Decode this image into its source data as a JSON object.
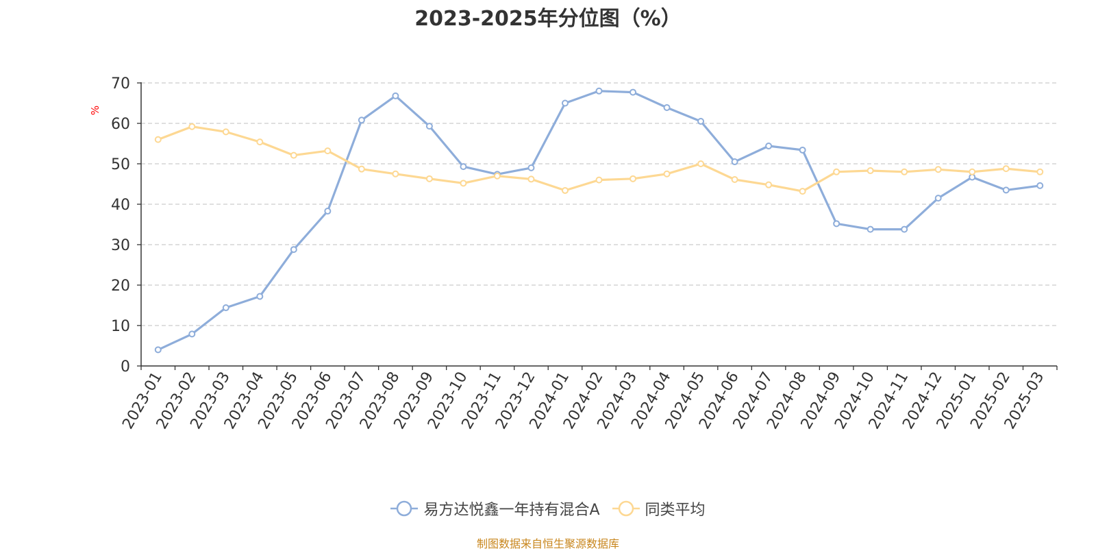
{
  "chart_data": {
    "type": "line",
    "title": "2023-2025年分位图（%）",
    "ylabel": "%",
    "xlabel": "",
    "ylim": [
      0,
      70
    ],
    "yticks": [
      0,
      10,
      20,
      30,
      40,
      50,
      60,
      70
    ],
    "grid": true,
    "legend_position": "bottom",
    "categories": [
      "2023-01",
      "2023-02",
      "2023-03",
      "2023-04",
      "2023-05",
      "2023-06",
      "2023-07",
      "2023-08",
      "2023-09",
      "2023-10",
      "2023-11",
      "2023-12",
      "2024-01",
      "2024-02",
      "2024-03",
      "2024-04",
      "2024-05",
      "2024-06",
      "2024-07",
      "2024-08",
      "2024-09",
      "2024-10",
      "2024-11",
      "2024-12",
      "2025-01",
      "2025-02",
      "2025-03"
    ],
    "series": [
      {
        "name": "易方达悦鑫一年持有混合A",
        "color": "#8eadda",
        "values": [
          4.0,
          7.9,
          14.4,
          17.2,
          28.8,
          38.3,
          60.8,
          66.8,
          59.3,
          49.3,
          47.4,
          49.0,
          65.0,
          68.0,
          67.7,
          63.9,
          60.5,
          50.5,
          54.4,
          53.4,
          35.2,
          33.8,
          33.8,
          41.5,
          46.7,
          43.5,
          44.6
        ]
      },
      {
        "name": "同类平均",
        "color": "#fdd893",
        "values": [
          56.0,
          59.2,
          57.9,
          55.4,
          52.1,
          53.2,
          48.7,
          47.5,
          46.3,
          45.2,
          47.0,
          46.2,
          43.4,
          46.0,
          46.3,
          47.5,
          50.0,
          46.1,
          44.8,
          43.2,
          48.0,
          48.3,
          48.0,
          48.6,
          48.0,
          48.8,
          48.0
        ]
      }
    ]
  },
  "colors": {
    "axis": "#333333",
    "grid": "#cccccc",
    "source": "#c8861d",
    "unit": "#ff0000"
  },
  "footer": {
    "source": "制图数据来自恒生聚源数据库"
  }
}
